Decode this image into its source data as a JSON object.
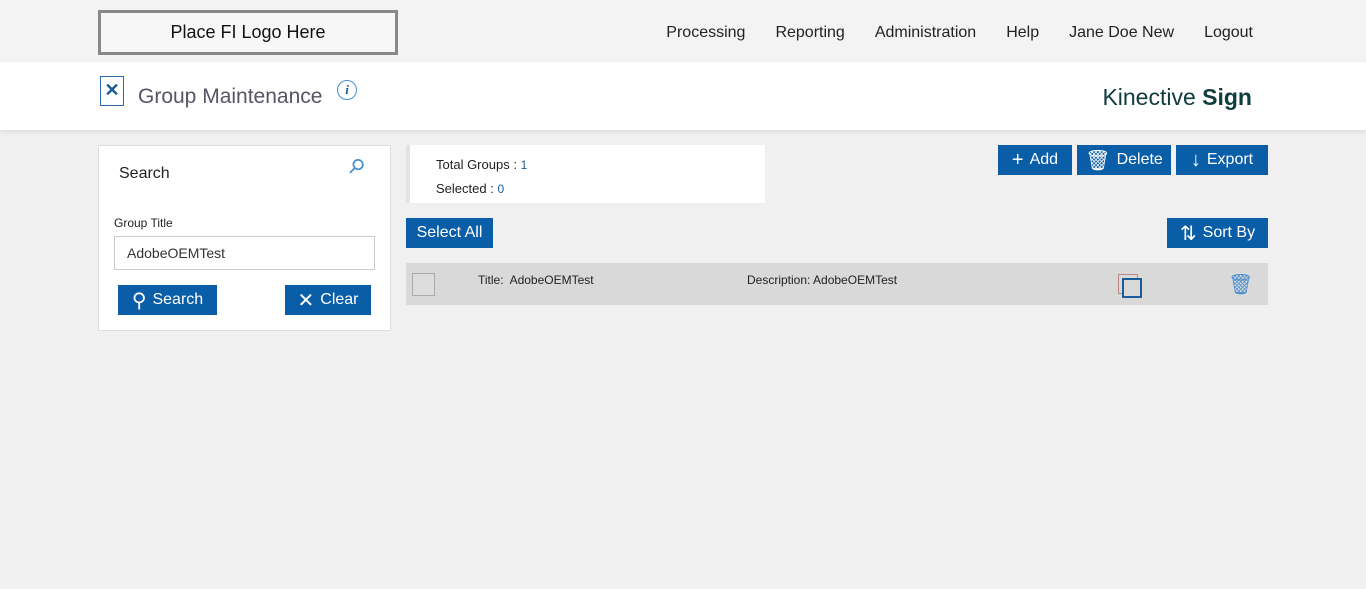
{
  "header": {
    "logo": "Place FI Logo Here",
    "nav": [
      "Processing",
      "Reporting",
      "Administration",
      "Help",
      "Jane Doe New",
      "Logout"
    ]
  },
  "page": {
    "title": "Group Maintenance",
    "brand_light": "Kinective",
    "brand_bold": "Sign"
  },
  "search": {
    "title": "Search",
    "field_label": "Group Title",
    "field_value": "AdobeOEMTest",
    "search_label": "Search",
    "clear_label": "Clear"
  },
  "stats": {
    "total_label": "Total Groups :",
    "total": "1",
    "selected_label": "Selected :",
    "selected": "0"
  },
  "toolbar": {
    "add": "Add",
    "delete": "Delete",
    "export": "Export",
    "select_all": "Select All",
    "sort_by": "Sort By"
  },
  "rows": [
    {
      "title_label": "Title:",
      "title": "AdobeOEMTest",
      "desc_label": "Description:",
      "desc": "AdobeOEMTest"
    }
  ]
}
